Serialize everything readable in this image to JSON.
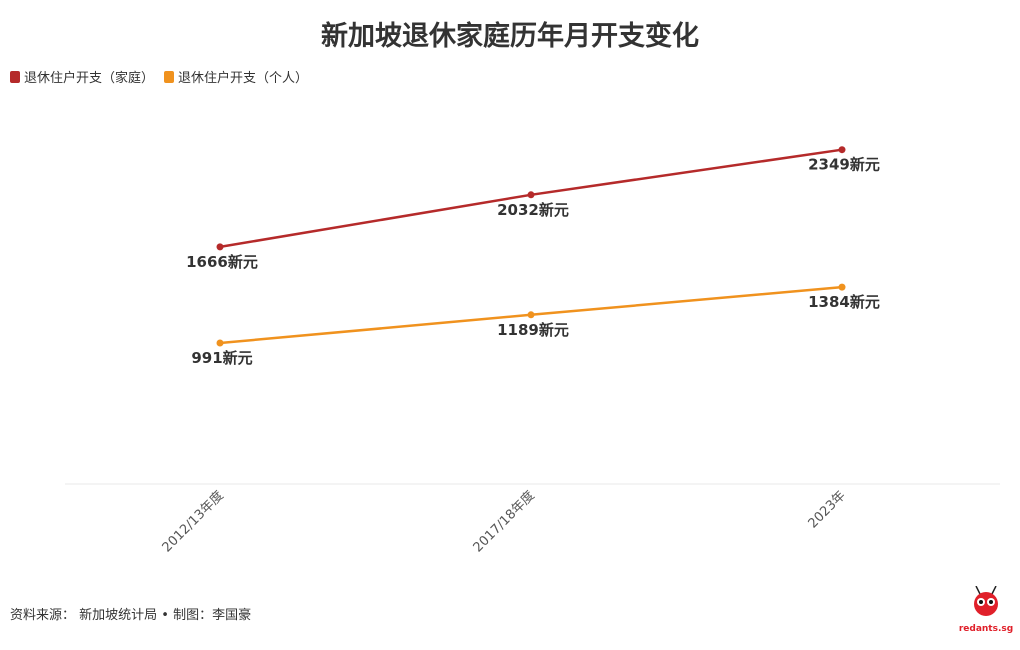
{
  "title": "新加坡退休家庭历年月开支变化",
  "footer": {
    "source": "资料来源： 新加坡统计局 • 制图：李国豪",
    "logo_text": "redants.sg"
  },
  "chart_data": {
    "type": "line",
    "title": "新加坡退休家庭历年月开支变化",
    "xlabel": "",
    "ylabel": "",
    "categories": [
      "2012/13年度",
      "2017/18年度",
      "2023年"
    ],
    "ylim": [
      0,
      3000
    ],
    "grid": false,
    "legend": "top-left",
    "value_suffix": "新元",
    "series": [
      {
        "name": "退休住户开支（家庭）",
        "color": "#b52a2a",
        "values": [
          1666,
          2032,
          2349
        ]
      },
      {
        "name": "退休住户开支（个人）",
        "color": "#f0921e",
        "values": [
          991,
          1189,
          1384
        ]
      }
    ]
  }
}
